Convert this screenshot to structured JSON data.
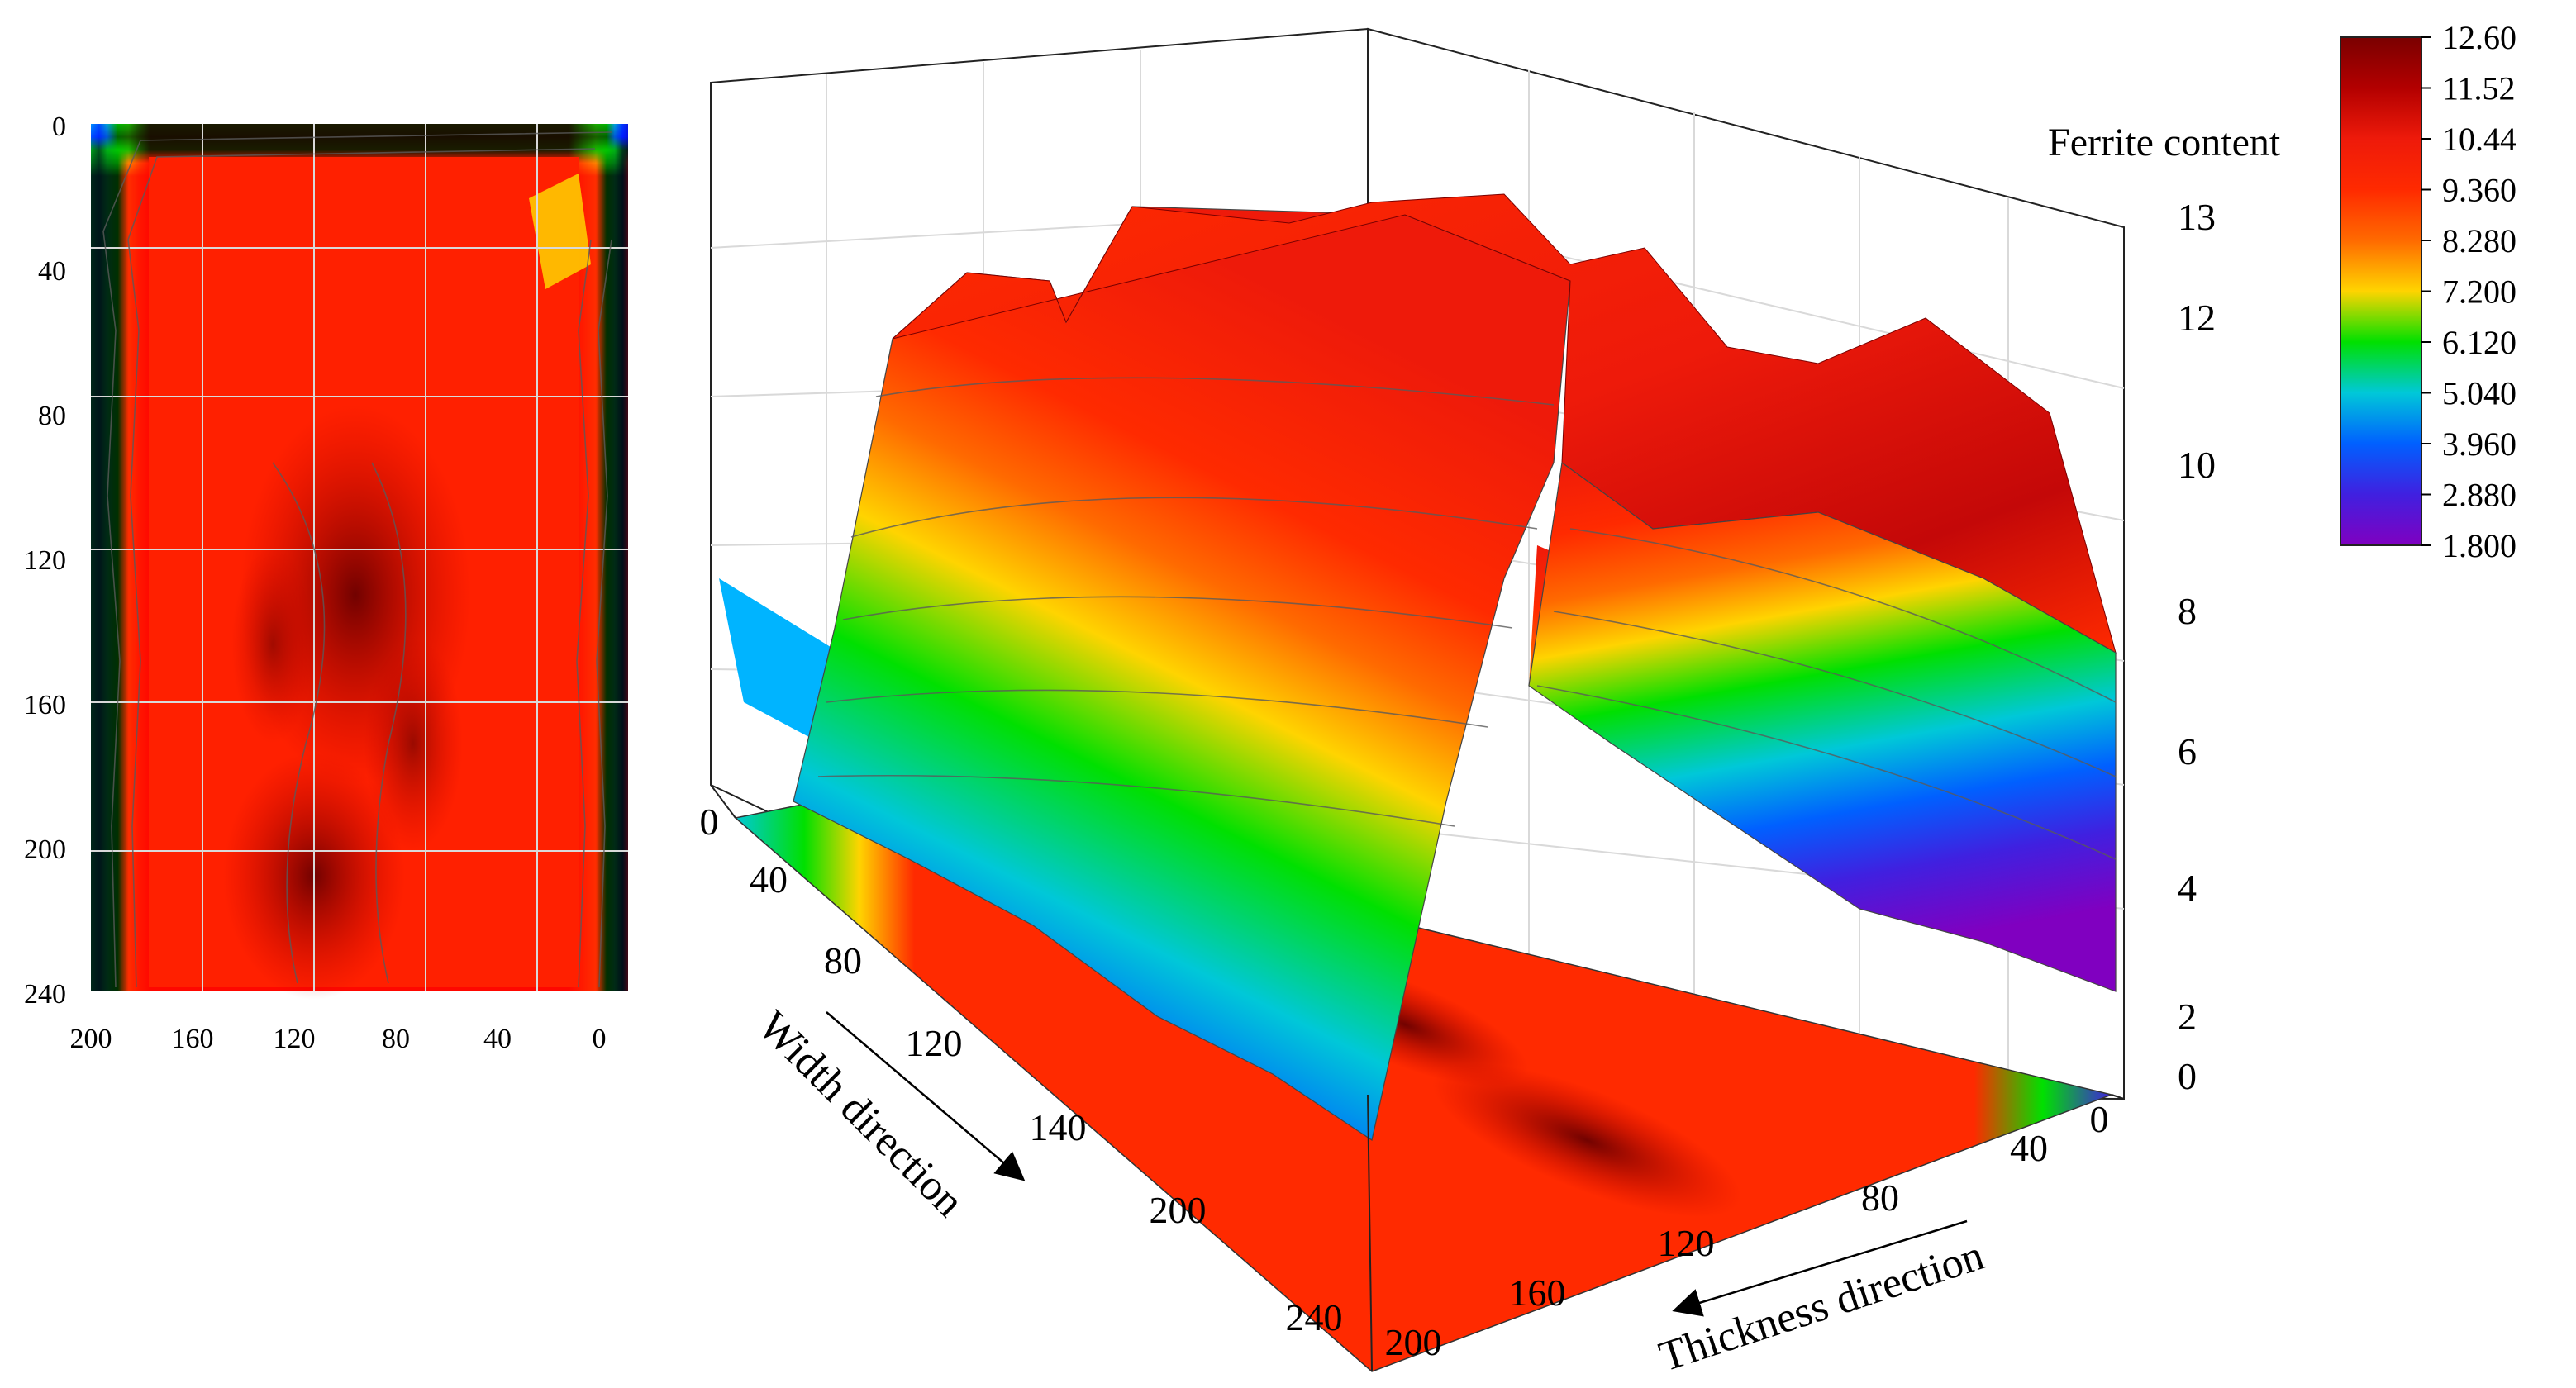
{
  "chart_data": [
    {
      "type": "heatmap",
      "xlabel": "",
      "ylabel": "",
      "x_ticks": [
        "200",
        "160",
        "120",
        "80",
        "40",
        "0"
      ],
      "y_ticks": [
        "0",
        "40",
        "80",
        "120",
        "160",
        "200",
        "240"
      ],
      "xlim": [
        200,
        0
      ],
      "ylim": [
        0,
        240
      ],
      "grid": true,
      "description_values": "ferrite content map; ~2-5 at edges, ~9-11 interior, ~12 core"
    },
    {
      "type": "area",
      "title": "Ferrite content",
      "width_label": "Width direction",
      "thickness_label": "Thickness direction",
      "width_ticks": [
        "0",
        "40",
        "80",
        "120",
        "140",
        "200",
        "240"
      ],
      "thickness_ticks": [
        "200",
        "160",
        "120",
        "80",
        "40",
        "0"
      ],
      "z_ticks": [
        "0",
        "2",
        "4",
        "6",
        "8",
        "10",
        "12",
        "13"
      ],
      "zlim": [
        0,
        13
      ],
      "grid": true,
      "ridge_profile": {
        "thickness": [
          200,
          180,
          160,
          140,
          120,
          100,
          80,
          60,
          40,
          20,
          0
        ],
        "ferrite": [
          2.5,
          6.0,
          9.5,
          10.5,
          11.0,
          11.2,
          11.0,
          10.5,
          9.5,
          6.0,
          2.5
        ]
      }
    }
  ],
  "colorbar": {
    "labels": [
      "12.60",
      "11.52",
      "10.44",
      "9.360",
      "8.280",
      "7.200",
      "6.120",
      "5.040",
      "3.960",
      "2.880",
      "1.800"
    ],
    "colors": [
      "#7a0000",
      "#b30000",
      "#ee1a0a",
      "#ff2a00",
      "#ff6a00",
      "#ffd400",
      "#00e000",
      "#00c8d8",
      "#0060ff",
      "#4020e0",
      "#8000c0"
    ]
  }
}
